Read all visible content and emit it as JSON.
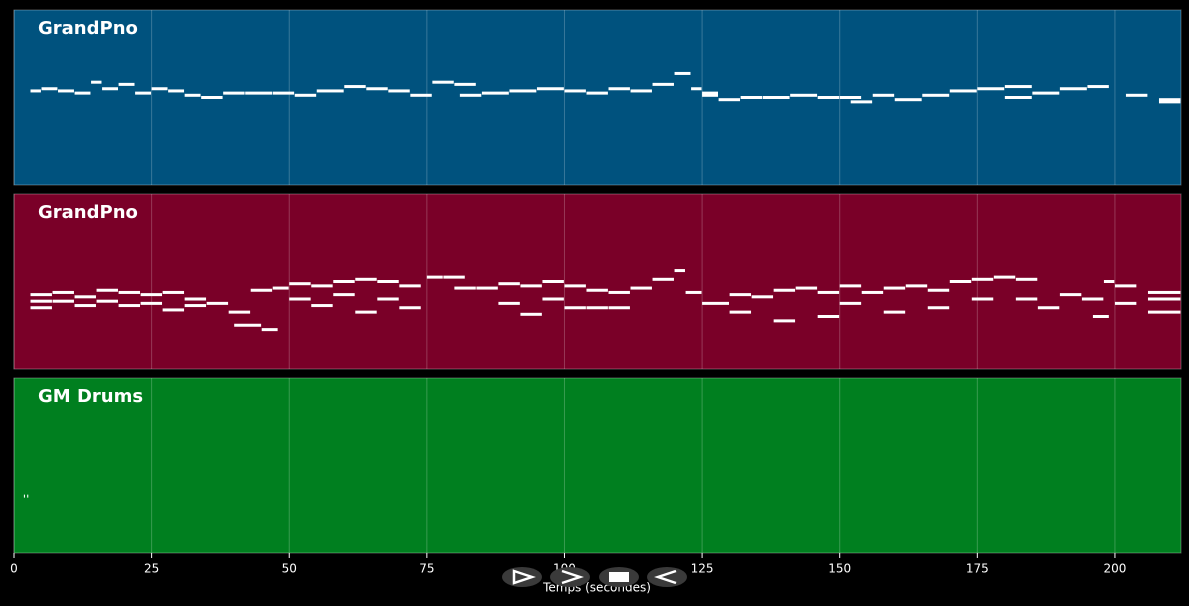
{
  "chart_data": [
    {
      "type": "piano-roll",
      "title": "GrandPno",
      "color": "#00527e",
      "note_color": "#ffffff",
      "xlim": [
        0,
        212
      ],
      "ylim": [
        20,
        100
      ],
      "grid": true,
      "x": [
        3,
        5,
        8,
        11,
        14,
        16,
        19,
        22,
        25,
        28,
        31,
        34,
        38,
        42,
        47,
        51,
        55,
        60,
        64,
        68,
        72,
        76,
        80,
        81,
        85,
        90,
        95,
        100,
        104,
        108,
        112,
        116,
        120,
        123,
        125,
        125,
        128,
        132,
        136,
        141,
        146,
        150,
        152,
        156,
        160,
        165,
        170,
        175,
        180,
        180,
        185,
        190,
        195,
        202,
        208,
        208
      ],
      "x_end": [
        5,
        8,
        11,
        14,
        16,
        19,
        22,
        25,
        28,
        31,
        34,
        38,
        42,
        47,
        51,
        55,
        60,
        64,
        68,
        72,
        76,
        80,
        84,
        85,
        90,
        95,
        100,
        104,
        108,
        112,
        116,
        120,
        123,
        125,
        128,
        128,
        132,
        136,
        141,
        146,
        150,
        154,
        156,
        160,
        165,
        170,
        175,
        180,
        185,
        185,
        190,
        195,
        199,
        206,
        212,
        212
      ],
      "values": [
        63,
        64,
        63,
        62,
        67,
        64,
        66,
        62,
        64,
        63,
        61,
        60,
        62,
        62,
        62,
        61,
        63,
        65,
        64,
        63,
        61,
        67,
        66,
        61,
        62,
        63,
        64,
        63,
        62,
        64,
        63,
        66,
        71,
        64,
        62,
        61,
        59,
        60,
        60,
        61,
        60,
        60,
        58,
        61,
        59,
        61,
        63,
        64,
        65,
        60,
        62,
        64,
        65,
        61,
        58,
        59
      ]
    },
    {
      "type": "piano-roll",
      "title": "GrandPno",
      "color": "#7a0028",
      "note_color": "#ffffff",
      "xlim": [
        0,
        212
      ],
      "ylim": [
        20,
        100
      ],
      "grid": true,
      "x": [
        3,
        3,
        3,
        7,
        7,
        11,
        11,
        15,
        15,
        19,
        19,
        23,
        23,
        27,
        27,
        31,
        31,
        35,
        39,
        40,
        45,
        43,
        47,
        50,
        50,
        54,
        54,
        58,
        58,
        62,
        62,
        66,
        66,
        70,
        70,
        75,
        78,
        80,
        84,
        88,
        88,
        92,
        92,
        96,
        96,
        100,
        100,
        104,
        104,
        108,
        108,
        112,
        116,
        120,
        122,
        125,
        130,
        130,
        134,
        138,
        138,
        142,
        146,
        146,
        150,
        150,
        154,
        158,
        158,
        162,
        166,
        166,
        170,
        174,
        174,
        178,
        182,
        182,
        186,
        190,
        194,
        196,
        198,
        200,
        200,
        206,
        206,
        206
      ],
      "x_end": [
        7,
        7,
        7,
        11,
        11,
        15,
        15,
        19,
        19,
        23,
        23,
        27,
        27,
        31,
        31,
        35,
        35,
        39,
        43,
        45,
        48,
        47,
        50,
        54,
        54,
        58,
        58,
        62,
        62,
        66,
        66,
        70,
        70,
        74,
        74,
        78,
        82,
        84,
        88,
        92,
        92,
        96,
        96,
        100,
        100,
        104,
        104,
        108,
        108,
        112,
        112,
        116,
        120,
        122,
        125,
        130,
        134,
        134,
        138,
        142,
        142,
        146,
        150,
        150,
        154,
        154,
        158,
        162,
        162,
        166,
        170,
        170,
        174,
        178,
        178,
        182,
        186,
        186,
        190,
        194,
        198,
        199,
        200,
        204,
        204,
        212,
        212,
        212
      ],
      "values": [
        54,
        51,
        48,
        55,
        51,
        53,
        49,
        56,
        51,
        55,
        49,
        54,
        50,
        55,
        47,
        52,
        49,
        50,
        46,
        40,
        38,
        56,
        57,
        59,
        52,
        58,
        49,
        60,
        54,
        61,
        46,
        60,
        52,
        58,
        48,
        62,
        62,
        57,
        57,
        59,
        50,
        58,
        45,
        60,
        52,
        58,
        48,
        56,
        48,
        55,
        48,
        57,
        61,
        65,
        55,
        50,
        54,
        46,
        53,
        56,
        42,
        57,
        55,
        44,
        58,
        50,
        55,
        57,
        46,
        58,
        56,
        48,
        60,
        61,
        52,
        62,
        61,
        52,
        48,
        54,
        52,
        44,
        60,
        58,
        50,
        52,
        55,
        46
      ]
    },
    {
      "type": "piano-roll",
      "title": "GM Drums",
      "color": "#007f1f",
      "note_color": "#ffffff",
      "xlim": [
        0,
        212
      ],
      "ylim": [
        20,
        100
      ],
      "grid": true,
      "x": [
        1.8,
        2.4
      ],
      "x_end": [
        2.1,
        2.7
      ],
      "values": [
        46,
        46
      ],
      "xticks": [
        0,
        25,
        50,
        75,
        100,
        125,
        150,
        175,
        200
      ],
      "xlabel": "Temps (secondes)"
    }
  ]
}
